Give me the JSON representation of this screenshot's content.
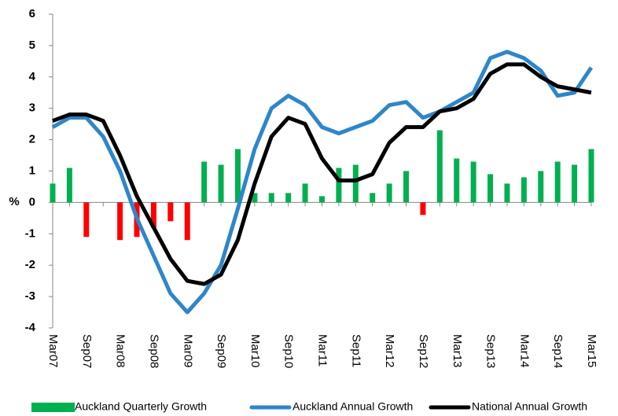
{
  "chart_data": {
    "type": "bar_line",
    "y_label": "%",
    "categories": [
      "Mar07",
      null,
      "Sep07",
      null,
      "Mar08",
      null,
      "Sep08",
      null,
      "Mar09",
      null,
      "Sep09",
      null,
      "Mar10",
      null,
      "Sep10",
      null,
      "Mar11",
      null,
      "Sep11",
      null,
      "Mar12",
      null,
      "Sep12",
      null,
      "Mar13",
      null,
      "Sep13",
      null,
      "Mar14",
      null,
      "Sep14",
      null,
      "Mar15"
    ],
    "series": [
      {
        "name": "Auckland Quarterly Growth",
        "type": "bar",
        "color": "#00b050",
        "negative_color": "#ff0000",
        "values": [
          0.6,
          1.1,
          -1.1,
          0,
          -1.2,
          -1.1,
          -0.8,
          -0.6,
          -1.2,
          1.3,
          1.2,
          1.7,
          0.3,
          0.3,
          0.3,
          0.6,
          0.2,
          1.1,
          1.2,
          0.3,
          0.6,
          1.0,
          -0.4,
          2.3,
          1.4,
          1.3,
          0.9,
          0.6,
          0.8,
          1.0,
          1.3,
          1.2,
          1.7
        ]
      },
      {
        "name": "Auckland Annual Growth",
        "type": "line",
        "color": "#2e86c9",
        "values": [
          2.4,
          2.7,
          2.7,
          2.1,
          1.0,
          -0.5,
          -1.7,
          -2.9,
          -3.5,
          -2.9,
          -2.0,
          -0.2,
          1.7,
          3.0,
          3.4,
          3.1,
          2.4,
          2.2,
          2.4,
          2.6,
          3.1,
          3.2,
          2.7,
          2.9,
          3.2,
          3.5,
          4.6,
          4.8,
          4.6,
          4.2,
          3.4,
          3.5,
          4.3
        ]
      },
      {
        "name": "National Annual Growth",
        "type": "line",
        "color": "#000000",
        "values": [
          2.6,
          2.8,
          2.8,
          2.6,
          1.5,
          0.2,
          -0.8,
          -1.8,
          -2.5,
          -2.6,
          -2.3,
          -1.2,
          0.6,
          2.1,
          2.7,
          2.5,
          1.4,
          0.7,
          0.7,
          0.9,
          1.9,
          2.4,
          2.4,
          2.9,
          3.0,
          3.3,
          4.1,
          4.4,
          4.4,
          4.0,
          3.7,
          3.6,
          3.5
        ]
      }
    ],
    "ylim": [
      -4,
      6
    ],
    "yticks": [
      -4,
      -3,
      -2,
      -1,
      0,
      1,
      2,
      3,
      4,
      5,
      6
    ],
    "grid": false
  }
}
